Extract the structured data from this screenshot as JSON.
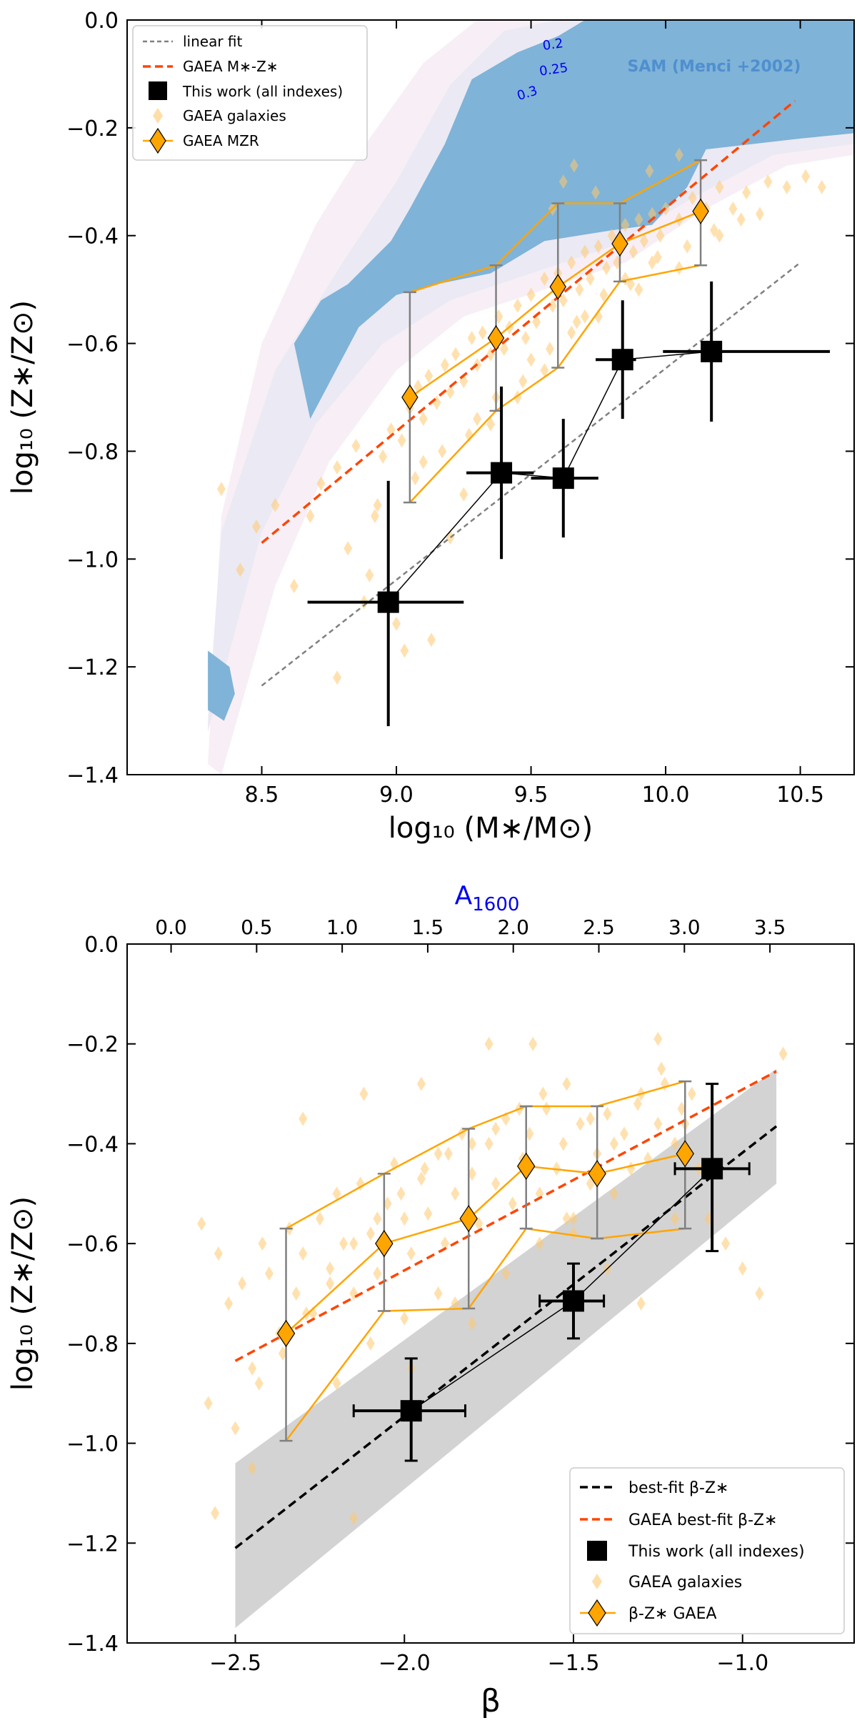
{
  "figure": {
    "background": "#ffffff"
  },
  "chart_data": [
    {
      "type": "scatter",
      "xlabel": "log₁₀ (M∗/M⊙)",
      "ylabel": "log₁₀ (Z∗/Z⊙)",
      "xlim": [
        8.0,
        10.7
      ],
      "ylim": [
        -1.4,
        0.0
      ],
      "x_ticks": [
        8.5,
        9.0,
        9.5,
        10.0,
        10.5
      ],
      "x_tick_labels": [
        "8.5",
        "9.0",
        "9.5",
        "10.0",
        "10.5"
      ],
      "y_ticks": [
        0.0,
        -0.2,
        -0.4,
        -0.6,
        -0.8,
        -1.0,
        -1.2,
        -1.4
      ],
      "y_tick_labels": [
        "0.0",
        "−0.2",
        "−0.4",
        "−0.6",
        "−0.8",
        "−1.0",
        "−1.2",
        "−1.4"
      ],
      "grid": false,
      "legend_position": "top-left",
      "legend": [
        "linear fit",
        "GAEA M∗-Z∗",
        "This work (all indexes)",
        "GAEA galaxies",
        "GAEA MZR"
      ],
      "annotations": [
        {
          "text": "SAM (Menci +2002)",
          "x": 10.15,
          "y": -0.085,
          "color": "#4f8fcf"
        },
        {
          "text": "0.2",
          "x": 9.63,
          "y": -0.045,
          "color": "#0000ee"
        },
        {
          "text": "0.25",
          "x": 9.62,
          "y": -0.095,
          "color": "#0000ee"
        },
        {
          "text": "0.3",
          "x": 9.52,
          "y": -0.14,
          "color": "#0000ee"
        }
      ],
      "colors": {
        "sam_contour": "#7fb3d8",
        "sam_outer_1": "#ebe9f3",
        "sam_outer_2": "#f7eff5",
        "gaea": "#ffa500",
        "gaea_points": "#ffc870",
        "gaea_fit": "#ff4500",
        "linear_fit": "#808080",
        "this_work": "#000000"
      },
      "sam_contour": {
        "x": [
          8.3,
          8.38,
          8.4,
          8.36,
          8.3
        ],
        "y": [
          -1.17,
          -1.2,
          -1.25,
          -1.3,
          -1.28
        ],
        "x_main": [
          8.62,
          8.72,
          8.82,
          8.98,
          9.05,
          9.18,
          9.28,
          9.45,
          9.6,
          9.7,
          10.7,
          10.7,
          10.5,
          10.15,
          10.08,
          9.95,
          9.8,
          9.55,
          9.35,
          9.15,
          9.0,
          8.86,
          8.68
        ],
        "y_main": [
          -0.6,
          -0.52,
          -0.49,
          -0.41,
          -0.35,
          -0.23,
          -0.11,
          -0.06,
          -0.03,
          0.0,
          0.0,
          -0.21,
          -0.22,
          -0.24,
          -0.31,
          -0.38,
          -0.39,
          -0.41,
          -0.47,
          -0.49,
          -0.51,
          -0.57,
          -0.74
        ]
      },
      "sam_envelope_1": {
        "x": [
          8.3,
          8.35,
          8.55,
          8.8,
          9.0,
          9.2,
          9.4,
          9.6,
          10.7,
          10.7,
          10.4,
          10.1,
          9.8,
          9.5,
          9.2,
          8.95,
          8.7,
          8.5,
          8.3
        ],
        "y": [
          -1.3,
          -0.95,
          -0.65,
          -0.45,
          -0.3,
          -0.12,
          -0.02,
          0.0,
          0.0,
          -0.23,
          -0.25,
          -0.33,
          -0.42,
          -0.47,
          -0.52,
          -0.6,
          -0.75,
          -0.95,
          -1.32
        ]
      },
      "sam_envelope_2": {
        "x": [
          8.3,
          8.35,
          8.5,
          8.7,
          8.9,
          9.1,
          9.3,
          9.5,
          10.7,
          10.7,
          10.45,
          10.15,
          9.85,
          9.55,
          9.25,
          9.0,
          8.75,
          8.55,
          8.35
        ],
        "y": [
          -1.38,
          -0.92,
          -0.6,
          -0.38,
          -0.22,
          -0.08,
          0.0,
          0.0,
          0.0,
          -0.25,
          -0.27,
          -0.35,
          -0.45,
          -0.5,
          -0.55,
          -0.65,
          -0.82,
          -1.05,
          -1.4
        ]
      },
      "linear_fit": {
        "x": [
          8.5,
          10.5
        ],
        "y": [
          -1.235,
          -0.45
        ]
      },
      "gaea_fit": {
        "x": [
          8.5,
          10.48
        ],
        "y": [
          -0.97,
          -0.15
        ]
      },
      "this_work": {
        "x": [
          8.97,
          9.39,
          9.62,
          9.84,
          10.17
        ],
        "y": [
          -1.08,
          -0.84,
          -0.85,
          -0.63,
          -0.615
        ],
        "xerr_low": [
          0.3,
          0.13,
          0.12,
          0.1,
          0.18
        ],
        "xerr_high": [
          0.28,
          0.12,
          0.13,
          0.05,
          0.44
        ],
        "yerr_low": [
          0.23,
          0.16,
          0.11,
          0.11,
          0.13
        ],
        "yerr_high": [
          0.225,
          0.16,
          0.11,
          0.11,
          0.13
        ]
      },
      "gaea_mzr": {
        "x": [
          9.05,
          9.37,
          9.6,
          9.83,
          10.13
        ],
        "y": [
          -0.7,
          -0.59,
          -0.495,
          -0.415,
          -0.355
        ],
        "upper": [
          -0.505,
          -0.455,
          -0.34,
          -0.34,
          -0.26
        ],
        "lower": [
          -0.895,
          -0.725,
          -0.645,
          -0.485,
          -0.455
        ]
      },
      "gaea_galaxies": {
        "x": [
          8.35,
          8.42,
          8.48,
          8.55,
          8.62,
          8.68,
          8.72,
          8.78,
          8.85,
          8.88,
          8.92,
          8.95,
          8.98,
          9.02,
          9.05,
          9.08,
          9.1,
          9.12,
          9.15,
          9.18,
          9.2,
          9.22,
          9.25,
          9.28,
          9.3,
          9.32,
          9.35,
          9.38,
          9.4,
          9.42,
          9.45,
          9.48,
          9.5,
          9.52,
          9.55,
          9.58,
          9.6,
          9.62,
          9.65,
          9.68,
          9.7,
          9.72,
          9.75,
          9.78,
          9.8,
          9.82,
          9.85,
          9.88,
          9.9,
          9.92,
          9.95,
          9.98,
          10.0,
          10.05,
          10.1,
          10.15,
          10.2,
          10.25,
          10.3,
          10.38,
          10.45,
          10.52,
          10.58,
          8.78,
          8.9,
          9.0,
          9.03,
          9.13,
          9.2,
          9.25,
          9.35,
          9.45,
          9.55,
          9.65,
          9.75,
          9.85,
          9.95,
          10.08,
          10.18,
          10.28,
          9.07,
          9.17,
          9.27,
          9.37,
          9.47,
          9.57,
          9.67,
          9.77,
          9.87,
          9.97,
          8.82,
          8.93,
          9.1,
          9.3,
          9.5,
          9.7,
          9.9,
          10.05,
          10.2,
          10.35,
          9.58,
          9.62,
          9.66,
          9.74,
          9.94,
          10.05
        ],
        "y": [
          -0.87,
          -1.02,
          -0.94,
          -0.9,
          -1.05,
          -0.92,
          -0.86,
          -0.83,
          -0.79,
          -1.08,
          -0.92,
          -0.81,
          -0.76,
          -0.78,
          -0.72,
          -0.68,
          -0.74,
          -0.66,
          -0.71,
          -0.64,
          -0.69,
          -0.62,
          -0.67,
          -0.59,
          -0.64,
          -0.58,
          -0.62,
          -0.55,
          -0.61,
          -0.57,
          -0.53,
          -0.59,
          -0.51,
          -0.56,
          -0.48,
          -0.53,
          -0.47,
          -0.52,
          -0.45,
          -0.5,
          -0.43,
          -0.48,
          -0.42,
          -0.46,
          -0.4,
          -0.45,
          -0.38,
          -0.43,
          -0.37,
          -0.41,
          -0.36,
          -0.4,
          -0.35,
          -0.37,
          -0.33,
          -0.35,
          -0.31,
          -0.35,
          -0.32,
          -0.3,
          -0.31,
          -0.29,
          -0.31,
          -1.22,
          -1.03,
          -1.12,
          -1.17,
          -1.15,
          -0.96,
          -0.88,
          -0.75,
          -0.7,
          -0.65,
          -0.58,
          -0.55,
          -0.48,
          -0.45,
          -0.42,
          -0.39,
          -0.37,
          -0.85,
          -0.8,
          -0.77,
          -0.7,
          -0.67,
          -0.61,
          -0.56,
          -0.51,
          -0.49,
          -0.44,
          -0.98,
          -0.9,
          -0.82,
          -0.74,
          -0.63,
          -0.55,
          -0.5,
          -0.46,
          -0.4,
          -0.36,
          -0.35,
          -0.3,
          -0.27,
          -0.32,
          -0.28,
          -0.25
        ]
      }
    },
    {
      "type": "scatter",
      "xlabel": "β",
      "ylabel": "log₁₀ (Z∗/Z⊙)",
      "top_xlabel": "A",
      "top_xlabel_sub": "1600",
      "top_xlabel_color": "#0000ee",
      "xlim": [
        -2.82,
        -0.67
      ],
      "ylim": [
        -1.4,
        0.0
      ],
      "x_ticks": [
        -2.5,
        -2.0,
        -1.5,
        -1.0
      ],
      "x_tick_labels": [
        "−2.5",
        "−2.0",
        "−1.5",
        "−1.0"
      ],
      "top_x_tick_labels": [
        "0.0",
        "0.5",
        "1.0",
        "1.5",
        "2.0",
        "2.5",
        "3.0",
        "3.5"
      ],
      "top_x_tick_beta": [
        -2.69,
        -2.437,
        -2.184,
        -1.931,
        -1.678,
        -1.425,
        -1.172,
        -0.919
      ],
      "y_ticks": [
        0.0,
        -0.2,
        -0.4,
        -0.6,
        -0.8,
        -1.0,
        -1.2,
        -1.4
      ],
      "y_tick_labels": [
        "0.0",
        "−0.2",
        "−0.4",
        "−0.6",
        "−0.8",
        "−1.0",
        "−1.2",
        "−1.4"
      ],
      "grid": false,
      "legend_position": "bottom-right",
      "legend": [
        "best-fit β-Z∗",
        "GAEA best-fit β-Z∗",
        "This work (all indexes)",
        "GAEA galaxies",
        "β-Z∗ GAEA"
      ],
      "colors": {
        "band": "#d3d3d3",
        "best_fit": "#000000",
        "gaea_fit": "#ff4500",
        "gaea": "#ffa500",
        "gaea_points": "#ffc870",
        "this_work": "#000000"
      },
      "band": {
        "x": [
          -2.5,
          -0.9,
          -0.9,
          -2.5
        ],
        "y": [
          -1.04,
          -0.25,
          -0.48,
          -1.37
        ]
      },
      "best_fit": {
        "x": [
          -2.5,
          -0.9
        ],
        "y": [
          -1.21,
          -0.365
        ]
      },
      "gaea_fit": {
        "x": [
          -2.5,
          -0.9
        ],
        "y": [
          -0.835,
          -0.255
        ]
      },
      "this_work": {
        "x": [
          -1.98,
          -1.5,
          -1.09
        ],
        "y": [
          -0.935,
          -0.715,
          -0.45
        ],
        "xerr_low": [
          0.17,
          0.1,
          0.11
        ],
        "xerr_high": [
          0.16,
          0.09,
          0.11
        ],
        "yerr_low": [
          0.1,
          0.075,
          0.165
        ],
        "yerr_high": [
          0.105,
          0.075,
          0.17
        ]
      },
      "gaea_relation": {
        "x": [
          -2.35,
          -2.06,
          -1.81,
          -1.64,
          -1.43,
          -1.17
        ],
        "y": [
          -0.78,
          -0.6,
          -0.55,
          -0.445,
          -0.46,
          -0.42
        ],
        "upper": [
          -0.57,
          -0.46,
          -0.37,
          -0.325,
          -0.325,
          -0.275
        ],
        "lower": [
          -0.995,
          -0.735,
          -0.73,
          -0.57,
          -0.59,
          -0.57
        ]
      },
      "gaea_galaxies": {
        "x": [
          -2.6,
          -2.55,
          -2.52,
          -2.48,
          -2.45,
          -2.42,
          -2.4,
          -2.37,
          -2.34,
          -2.32,
          -2.3,
          -2.27,
          -2.25,
          -2.22,
          -2.2,
          -2.18,
          -2.15,
          -2.13,
          -2.1,
          -2.08,
          -2.05,
          -2.03,
          -2.0,
          -1.98,
          -1.95,
          -1.93,
          -1.9,
          -1.88,
          -1.85,
          -1.83,
          -1.8,
          -1.78,
          -1.75,
          -1.73,
          -1.7,
          -1.68,
          -1.65,
          -1.63,
          -1.6,
          -1.58,
          -1.55,
          -1.53,
          -1.5,
          -1.48,
          -1.45,
          -1.43,
          -1.4,
          -1.38,
          -1.35,
          -1.33,
          -1.3,
          -1.28,
          -1.25,
          -1.23,
          -1.2,
          -1.18,
          -1.15,
          -1.13,
          -1.1,
          -1.05,
          -1.0,
          -0.95,
          -0.88,
          -2.58,
          -2.5,
          -2.43,
          -2.36,
          -2.29,
          -2.22,
          -2.15,
          -2.08,
          -2.01,
          -1.94,
          -1.87,
          -1.8,
          -1.73,
          -1.66,
          -1.59,
          -1.52,
          -1.45,
          -1.38,
          -1.31,
          -1.24,
          -1.17,
          -2.2,
          -2.1,
          -2.0,
          -1.9,
          -1.8,
          -1.7,
          -1.6,
          -1.5,
          -1.4,
          -1.3,
          -1.2,
          -1.62,
          -1.75,
          -1.95,
          -2.12,
          -2.3,
          -2.45,
          -2.56,
          -1.85,
          -1.52,
          -1.25,
          -2.15,
          -1.98
        ],
        "y": [
          -0.56,
          -0.62,
          -0.72,
          -0.68,
          -0.85,
          -0.6,
          -0.66,
          -0.78,
          -0.57,
          -0.7,
          -0.62,
          -0.74,
          -0.55,
          -0.65,
          -0.5,
          -0.6,
          -0.7,
          -0.48,
          -0.58,
          -0.66,
          -0.52,
          -0.44,
          -0.55,
          -0.62,
          -0.47,
          -0.54,
          -0.42,
          -0.6,
          -0.5,
          -0.38,
          -0.46,
          -0.56,
          -0.4,
          -0.48,
          -0.35,
          -0.52,
          -0.43,
          -0.38,
          -0.5,
          -0.33,
          -0.45,
          -0.4,
          -0.55,
          -0.36,
          -0.48,
          -0.42,
          -0.34,
          -0.5,
          -0.38,
          -0.45,
          -0.3,
          -0.43,
          -0.36,
          -0.28,
          -0.4,
          -0.33,
          -0.3,
          -0.45,
          -0.55,
          -0.6,
          -0.65,
          -0.7,
          -0.22,
          -0.92,
          -0.97,
          -0.88,
          -0.82,
          -0.74,
          -0.68,
          -0.6,
          -0.55,
          -0.5,
          -0.45,
          -0.42,
          -0.4,
          -0.37,
          -0.33,
          -0.3,
          -0.28,
          -0.35,
          -0.4,
          -0.32,
          -0.25,
          -0.36,
          -0.88,
          -0.8,
          -0.75,
          -0.7,
          -0.76,
          -0.66,
          -0.6,
          -0.58,
          -0.65,
          -0.72,
          -0.55,
          -0.2,
          -0.2,
          -0.28,
          -0.3,
          -0.35,
          -1.05,
          -1.14,
          -0.72,
          -0.55,
          -0.19,
          -1.15,
          -0.85
        ]
      }
    }
  ]
}
